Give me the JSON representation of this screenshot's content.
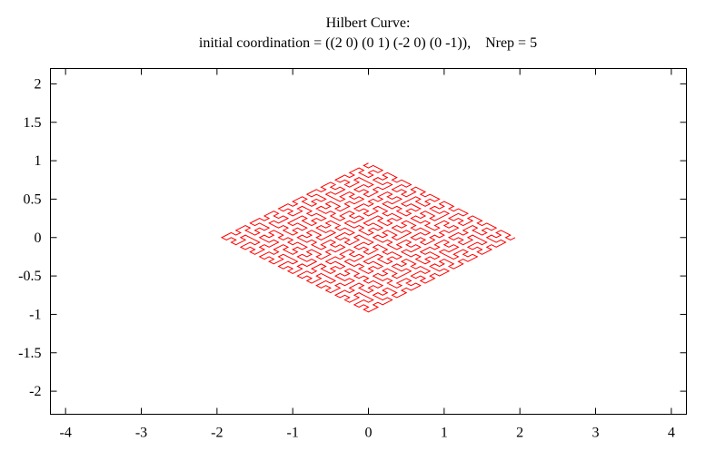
{
  "chart_data": {
    "type": "line",
    "title": "Hilbert Curve:",
    "subtitle": "initial coordination = ((2 0) (0 1) (-2 0) (0 -1)),    Nrep = 5",
    "xlabel": "",
    "ylabel": "",
    "xlim": [
      -4.2,
      4.2
    ],
    "ylim": [
      -2.3,
      2.2
    ],
    "xticks": [
      -4,
      -3,
      -2,
      -1,
      0,
      1,
      2,
      3,
      4
    ],
    "xtick_labels": [
      "-4",
      "-3",
      "-2",
      "-1",
      "0",
      "1",
      "2",
      "3",
      "4"
    ],
    "yticks": [
      2,
      1.5,
      1,
      0.5,
      0,
      -0.5,
      -1,
      -1.5,
      -2
    ],
    "ytick_labels": [
      "2",
      "1.5",
      "1",
      "0.5",
      "0",
      "-0.5",
      "-1",
      "-1.5",
      "-2"
    ],
    "grid": false,
    "legend": "none",
    "series": [
      {
        "color": "#ff0000",
        "curve": "hilbert",
        "order": 5,
        "initial_coordination": [
          [
            2,
            0
          ],
          [
            0,
            1
          ],
          [
            -2,
            0
          ],
          [
            0,
            -1
          ]
        ]
      }
    ]
  }
}
